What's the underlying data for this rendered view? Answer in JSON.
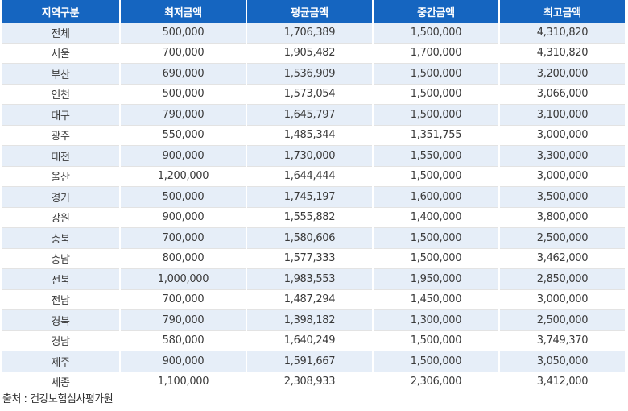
{
  "table": {
    "headers": [
      "지역구분",
      "최저금액",
      "평균금액",
      "중간금액",
      "최고금액"
    ],
    "rows": [
      [
        "전체",
        "500,000",
        "1,706,389",
        "1,500,000",
        "4,310,820"
      ],
      [
        "서울",
        "700,000",
        "1,905,482",
        "1,700,000",
        "4,310,820"
      ],
      [
        "부산",
        "690,000",
        "1,536,909",
        "1,500,000",
        "3,200,000"
      ],
      [
        "인천",
        "500,000",
        "1,573,054",
        "1,500,000",
        "3,066,000"
      ],
      [
        "대구",
        "790,000",
        "1,645,797",
        "1,500,000",
        "3,100,000"
      ],
      [
        "광주",
        "550,000",
        "1,485,344",
        "1,351,755",
        "3,000,000"
      ],
      [
        "대전",
        "900,000",
        "1,730,000",
        "1,550,000",
        "3,300,000"
      ],
      [
        "울산",
        "1,200,000",
        "1,644,444",
        "1,500,000",
        "3,000,000"
      ],
      [
        "경기",
        "500,000",
        "1,745,197",
        "1,600,000",
        "3,500,000"
      ],
      [
        "강원",
        "900,000",
        "1,555,882",
        "1,400,000",
        "3,800,000"
      ],
      [
        "충북",
        "700,000",
        "1,580,606",
        "1,500,000",
        "2,500,000"
      ],
      [
        "충남",
        "800,000",
        "1,577,333",
        "1,500,000",
        "3,462,000"
      ],
      [
        "전북",
        "1,000,000",
        "1,983,553",
        "1,950,000",
        "2,850,000"
      ],
      [
        "전남",
        "700,000",
        "1,487,294",
        "1,450,000",
        "3,000,000"
      ],
      [
        "경북",
        "790,000",
        "1,398,182",
        "1,300,000",
        "2,500,000"
      ],
      [
        "경남",
        "580,000",
        "1,640,249",
        "1,500,000",
        "3,749,370"
      ],
      [
        "제주",
        "900,000",
        "1,591,667",
        "1,500,000",
        "3,050,000"
      ],
      [
        "세종",
        "1,100,000",
        "2,308,933",
        "2,306,000",
        "3,412,000"
      ]
    ]
  },
  "source": "출처 : 건강보험심사평가원"
}
